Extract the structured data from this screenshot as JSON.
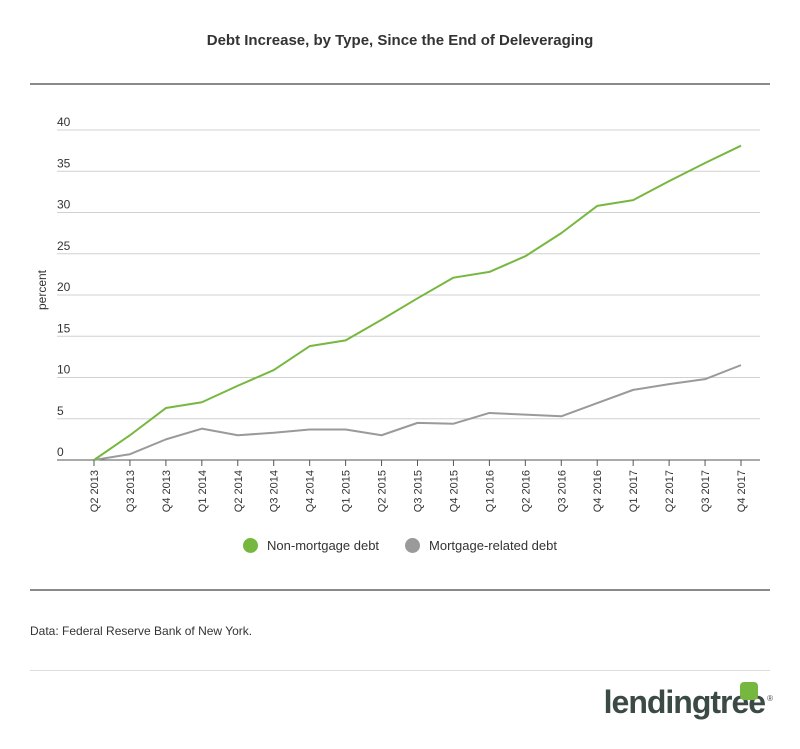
{
  "title": "Debt Increase, by Type, Since the End of Deleveraging",
  "source": "Data: Federal Reserve Bank of New York.",
  "logo": {
    "text": "lendingtree",
    "reg": "®"
  },
  "colors": {
    "green": "#76b83f",
    "gray": "#9a9a9a",
    "grid": "#d0d0d0",
    "axis": "#555555"
  },
  "chart_data": {
    "type": "line",
    "title": "Debt Increase, by Type, Since the End of Deleveraging",
    "xlabel": "",
    "ylabel": "percent",
    "ylim": [
      0,
      40
    ],
    "yticks": [
      0,
      5,
      10,
      15,
      20,
      25,
      30,
      35,
      40
    ],
    "grid": true,
    "legend": "bottom-center",
    "categories": [
      "Q2 2013",
      "Q3 2013",
      "Q4 2013",
      "Q1 2014",
      "Q2 2014",
      "Q3 2014",
      "Q4 2014",
      "Q1 2015",
      "Q2 2015",
      "Q3 2015",
      "Q4 2015",
      "Q1 2016",
      "Q2 2016",
      "Q3 2016",
      "Q4 2016",
      "Q1 2017",
      "Q2 2017",
      "Q3 2017",
      "Q4 2017"
    ],
    "series": [
      {
        "name": "Non-mortgage debt",
        "color": "#76b83f",
        "values": [
          0,
          3,
          6.3,
          7,
          9,
          10.9,
          13.8,
          14.5,
          17,
          19.6,
          22.1,
          22.8,
          24.7,
          27.5,
          30.8,
          31.5,
          33.8,
          36,
          38.1
        ]
      },
      {
        "name": "Mortgage-related debt",
        "color": "#9a9a9a",
        "values": [
          0,
          0.7,
          2.5,
          3.8,
          3,
          3.3,
          3.7,
          3.7,
          3,
          4.5,
          4.4,
          5.7,
          5.5,
          5.3,
          6.9,
          8.5,
          9.2,
          9.8,
          11.5
        ]
      }
    ]
  }
}
